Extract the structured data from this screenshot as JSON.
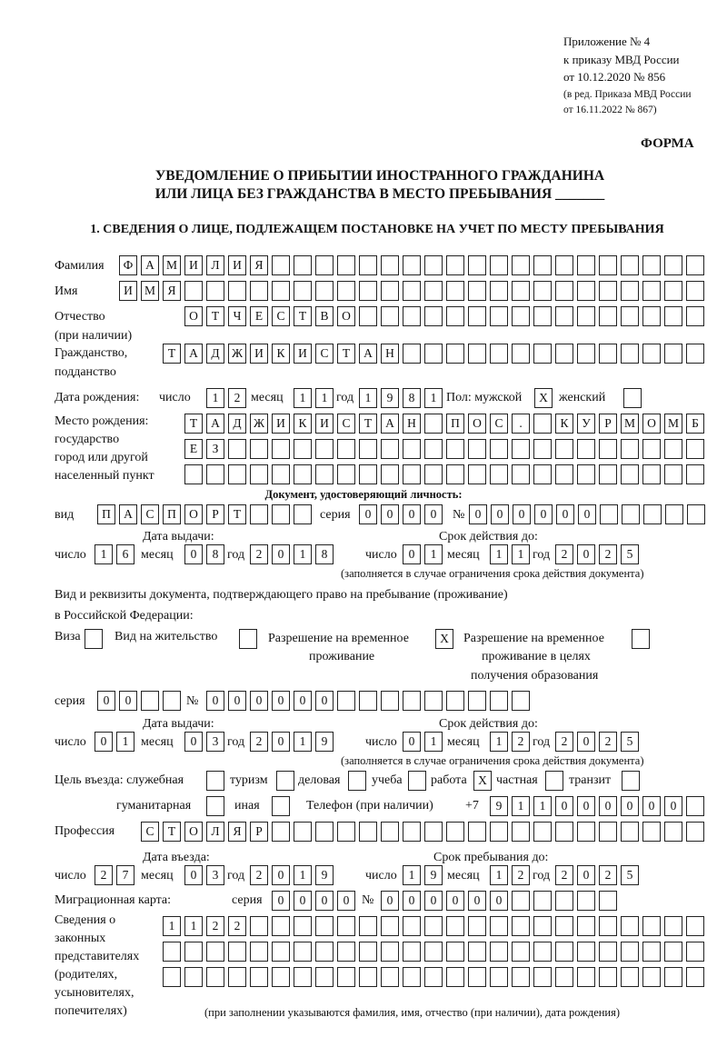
{
  "header": {
    "line1": "Приложение № 4",
    "line2": "к приказу МВД России",
    "line3": "от 10.12.2020 № 856",
    "line4": "(в ред. Приказа МВД России",
    "line5": "от 16.11.2022 № 867)",
    "form_label": "ФОРМА",
    "title1": "УВЕДОМЛЕНИЕ О ПРИБЫТИИ ИНОСТРАННОГО ГРАЖДАНИНА",
    "title2": "ИЛИ ЛИЦА БЕЗ ГРАЖДАНСТВА В МЕСТО ПРЕБЫВАНИЯ _______",
    "section1": "1. СВЕДЕНИЯ О ЛИЦЕ, ПОДЛЕЖАЩЕМ ПОСТАНОВКЕ НА УЧЕТ ПО МЕСТУ ПРЕБЫВАНИЯ"
  },
  "labels": {
    "surname": "Фамилия",
    "name": "Имя",
    "patronymic": "Отчество",
    "patronymic2": "(при наличии)",
    "citizenship": "Гражданство,",
    "citizenship2": "подданство",
    "birth_date": "Дата рождения:",
    "day": "число",
    "month": "месяц",
    "year": "год",
    "sex": "Пол: мужской",
    "female": "женский",
    "birthplace1": "Место рождения:",
    "birthplace2": "государство",
    "birthplace3": "город или другой",
    "birthplace4": "населенный пункт",
    "id_doc": "Документ, удостоверяющий личность:",
    "kind": "вид",
    "series": "серия",
    "number": "№",
    "issue_date": "Дата выдачи:",
    "valid_until": "Срок действия до:",
    "valid_note": "(заполняется в случае ограничения срока действия документа)",
    "right_doc1": "Вид и реквизиты документа, подтверждающего право на пребывание (проживание)",
    "right_doc2": "в Российской Федерации:",
    "visa": "Виза",
    "residence": "Вид на жительство",
    "temp_res1": "Разрешение на временное",
    "temp_res2": "проживание",
    "temp_edu1": "Разрешение на временное",
    "temp_edu2": "проживание в целях",
    "temp_edu3": "получения образования",
    "purpose": "Цель въезда: служебная",
    "tourism": "туризм",
    "business": "деловая",
    "study": "учеба",
    "work": "работа",
    "private": "частная",
    "transit": "транзит",
    "humanitarian": "гуманитарная",
    "other": "иная",
    "phone": "Телефон (при наличии)",
    "phone_prefix": "+7",
    "profession": "Профессия",
    "entry_date": "Дата въезда:",
    "stay_until": "Срок пребывания до:",
    "migration_card": "Миграционная карта:",
    "rep1": "Сведения о",
    "rep2": "законных",
    "rep3": "представителях",
    "rep4": "(родителях,",
    "rep5": "усыновителях,",
    "rep6": "попечителях)",
    "rep_note": "(при заполнении указываются фамилия, имя, отчество (при наличии), дата рождения)"
  },
  "fields": {
    "surname": "ФАМИЛИЯ",
    "name": "ИМЯ",
    "patronymic": "ОТЧЕСТВО",
    "citizenship": "ТАДЖИКИСТАН",
    "birth_day": "12",
    "birth_month": "11",
    "birth_year": "1981",
    "sex_male": "X",
    "sex_female": "",
    "birthplace_row1": "ТАДЖИКИСТАН ПОС. КУРМОМБ",
    "birthplace_row2": "ЕЗ",
    "birthplace_row3": "",
    "id_kind": "ПАСПОРТ",
    "id_series": "0000",
    "id_number": "000000",
    "id_issue_day": "16",
    "id_issue_month": "08",
    "id_issue_year": "2018",
    "id_valid_day": "01",
    "id_valid_month": "11",
    "id_valid_year": "2025",
    "visa": "",
    "residence": "",
    "temp_res": "X",
    "temp_edu": "",
    "rd_series": "00",
    "rd_number": "000000",
    "rd_issue_day": "01",
    "rd_issue_month": "03",
    "rd_issue_year": "2019",
    "rd_valid_day": "01",
    "rd_valid_month": "12",
    "rd_valid_year": "2025",
    "p_service": "",
    "p_tourism": "",
    "p_business": "",
    "p_study": "",
    "p_work": "X",
    "p_private": "",
    "p_transit": "",
    "p_humanitarian": "",
    "p_other": "",
    "phone": "911000000",
    "profession": "СТОЛЯР",
    "entry_day": "27",
    "entry_month": "03",
    "entry_year": "2019",
    "stay_day": "19",
    "stay_month": "12",
    "stay_year": "2025",
    "mc_series": "0000",
    "mc_number": "000000",
    "rep_row1": "1122",
    "rep_row2": "",
    "rep_row3": ""
  }
}
